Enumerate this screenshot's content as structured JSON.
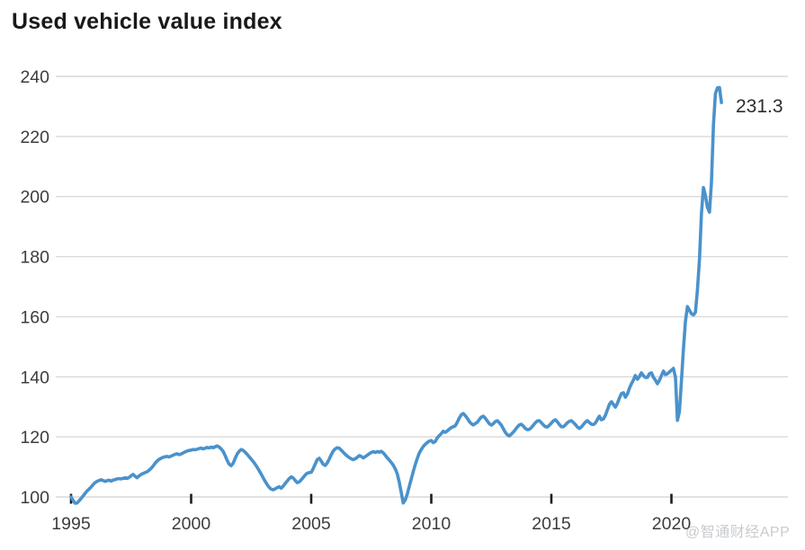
{
  "page": {
    "title": "Used vehicle value index",
    "watermark": "@智通财经APP"
  },
  "chart_data": {
    "type": "line",
    "title": "Used vehicle value index",
    "xlabel": "",
    "ylabel": "",
    "legend": "none",
    "grid": "horizontal",
    "line_color": "#4a92cc",
    "grid_color": "#d9d9d9",
    "tick_mark_color": "#1d1d1d",
    "label_color": "#3d3d3d",
    "x_tick_years": [
      1995,
      2000,
      2005,
      2010,
      2015,
      2020
    ],
    "x_tick_labels": [
      "1995",
      "2000",
      "2005",
      "2010",
      "2015",
      "2020"
    ],
    "y_ticks": [
      100,
      120,
      140,
      160,
      180,
      200,
      220,
      240
    ],
    "ylim": [
      100,
      240
    ],
    "x_range_years": [
      1995,
      2022.17
    ],
    "annotation": {
      "text": "231.3",
      "value": 231.3
    },
    "series": [
      {
        "name": "Used vehicle value index",
        "start_year": 1995,
        "frequency": "monthly",
        "values": [
          100.0,
          98.9,
          97.9,
          98.0,
          98.7,
          99.5,
          100.3,
          101.2,
          102.0,
          102.6,
          103.3,
          104.1,
          104.8,
          105.2,
          105.5,
          105.7,
          105.5,
          105.2,
          105.4,
          105.6,
          105.3,
          105.6,
          105.8,
          106.0,
          106.1,
          106.0,
          106.2,
          106.4,
          106.2,
          106.5,
          107.1,
          107.5,
          106.9,
          106.4,
          107.0,
          107.5,
          107.8,
          108.1,
          108.4,
          108.9,
          109.5,
          110.3,
          111.2,
          112.0,
          112.5,
          112.9,
          113.2,
          113.4,
          113.5,
          113.3,
          113.6,
          113.9,
          114.2,
          114.4,
          114.1,
          114.3,
          114.7,
          115.0,
          115.3,
          115.5,
          115.6,
          115.8,
          115.7,
          115.9,
          116.1,
          116.3,
          116.0,
          116.2,
          116.5,
          116.3,
          116.6,
          116.4,
          116.7,
          117.0,
          116.6,
          116.0,
          115.2,
          113.8,
          112.2,
          110.9,
          110.4,
          111.2,
          112.8,
          114.3,
          115.2,
          115.8,
          115.5,
          114.9,
          114.2,
          113.4,
          112.6,
          111.8,
          110.9,
          109.9,
          108.8,
          107.6,
          106.4,
          105.2,
          104.1,
          103.2,
          102.6,
          102.4,
          102.7,
          103.1,
          103.4,
          102.9,
          103.6,
          104.5,
          105.3,
          106.1,
          106.7,
          106.3,
          105.5,
          104.8,
          105.0,
          105.7,
          106.5,
          107.3,
          107.9,
          108.1,
          108.2,
          109.4,
          111.0,
          112.4,
          112.9,
          112.0,
          110.9,
          110.5,
          111.3,
          112.6,
          114.0,
          115.3,
          116.0,
          116.4,
          116.2,
          115.6,
          114.9,
          114.2,
          113.6,
          113.1,
          112.7,
          112.4,
          112.7,
          113.2,
          113.8,
          113.5,
          113.0,
          113.4,
          113.9,
          114.4,
          114.8,
          115.1,
          114.8,
          115.1,
          114.9,
          115.2,
          114.7,
          113.9,
          113.0,
          112.3,
          111.5,
          110.6,
          109.4,
          107.7,
          104.9,
          101.5,
          98.0,
          99.0,
          101.0,
          103.5,
          106.0,
          108.5,
          110.8,
          112.8,
          114.6,
          115.8,
          116.8,
          117.5,
          118.1,
          118.6,
          118.8,
          118.1,
          118.5,
          119.7,
          120.4,
          121.1,
          121.9,
          121.5,
          122.0,
          122.6,
          123.1,
          123.4,
          123.7,
          124.9,
          126.3,
          127.4,
          127.8,
          127.1,
          126.2,
          125.1,
          124.4,
          124.0,
          124.4,
          124.9,
          125.8,
          126.6,
          126.9,
          126.2,
          125.3,
          124.4,
          123.9,
          124.4,
          125.1,
          125.4,
          124.7,
          123.9,
          122.7,
          121.5,
          120.7,
          120.3,
          120.9,
          121.6,
          122.4,
          123.3,
          124.0,
          124.2,
          123.6,
          122.8,
          122.4,
          122.5,
          123.1,
          123.9,
          124.7,
          125.3,
          125.4,
          124.7,
          124.0,
          123.4,
          123.3,
          123.9,
          124.6,
          125.3,
          125.7,
          125.0,
          124.1,
          123.4,
          123.4,
          124.0,
          124.7,
          125.2,
          125.4,
          124.8,
          124.1,
          123.3,
          122.8,
          123.3,
          124.1,
          124.9,
          125.4,
          124.8,
          124.2,
          124.1,
          124.6,
          125.8,
          126.9,
          125.7,
          126.0,
          127.2,
          129.0,
          130.8,
          131.7,
          130.8,
          129.9,
          131.1,
          132.9,
          134.4,
          134.7,
          133.2,
          134.3,
          136.2,
          137.7,
          138.9,
          140.4,
          139.2,
          140.1,
          141.3,
          140.4,
          139.8,
          139.8,
          141.0,
          141.3,
          139.8,
          138.9,
          137.7,
          138.8,
          140.4,
          141.9,
          140.7,
          141.0,
          141.6,
          142.2,
          142.8,
          139.8,
          125.5,
          128.5,
          138.5,
          149.5,
          158.5,
          163.4,
          162.2,
          161.0,
          160.6,
          161.5,
          168.9,
          179.2,
          194.5,
          203.0,
          200.4,
          196.4,
          194.8,
          204.8,
          223.7,
          234.3,
          236.2,
          236.3,
          231.3
        ]
      }
    ]
  }
}
